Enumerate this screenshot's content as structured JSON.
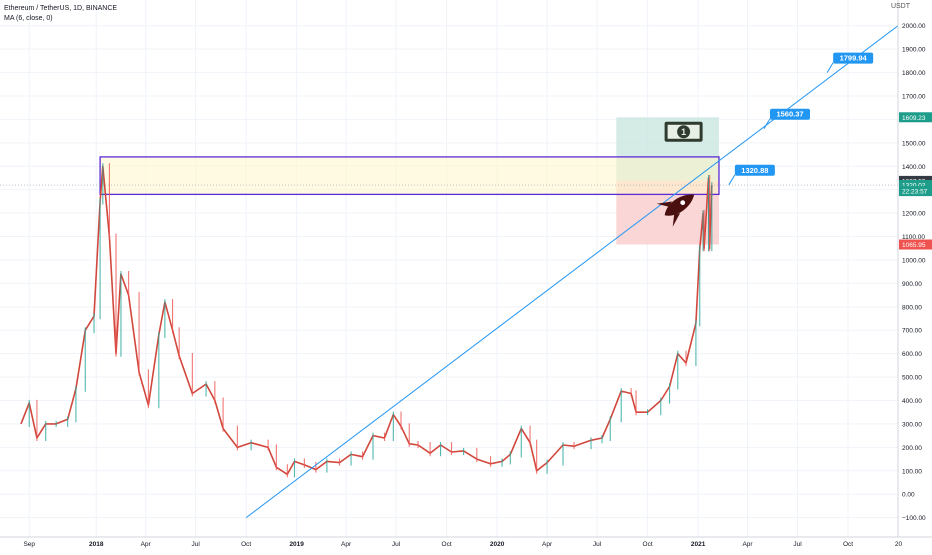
{
  "header": {
    "symbol_line": "Ethereum / TetherUS, 1D, BINANCE",
    "indicator_line": "MA (6, close, 0)",
    "currency": "USDT"
  },
  "colors": {
    "candle_up": "#26a69a",
    "candle_down": "#ef5350",
    "price_line": "#d1473c",
    "trendline": "#2196f3",
    "zone_border": "#5b2bd8",
    "zone_fill": "#fff6c8",
    "profit_fill": "#cde8e2",
    "loss_fill": "#f9cfcf",
    "badge_blue": "#2196f3",
    "badge_green": "#1e9e8a",
    "badge_red": "#ef5350",
    "grid": "#f0f3fa"
  },
  "chart_data": {
    "type": "line",
    "title": "Ethereum / TetherUS, 1D, BINANCE",
    "ylim": [
      -140,
      2080
    ],
    "xlim": [
      "2017-08-17",
      "2021-12-31"
    ],
    "y_ticks": [
      -100,
      0,
      100,
      200,
      300,
      400,
      500,
      600,
      700,
      800,
      900,
      1000,
      1100,
      1200,
      1300,
      1400,
      1500,
      1600,
      1700,
      1800,
      1900,
      2000
    ],
    "y_tick_labels": [
      "−100.00",
      "0.00",
      "100.00",
      "200.00",
      "300.00",
      "400.00",
      "500.00",
      "600.00",
      "700.00",
      "800.00",
      "900.00",
      "1000.00",
      "1100.00",
      "1200.00",
      "1300.00",
      "1400.00",
      "1500.00",
      "1600.00",
      "1700.00",
      "1800.00",
      "1900.00",
      "2000.00"
    ],
    "x_ticks": [
      {
        "label": "Sep",
        "date": "2017-09-01"
      },
      {
        "label": "2018",
        "date": "2018-01-01"
      },
      {
        "label": "Apr",
        "date": "2018-04-01"
      },
      {
        "label": "Jul",
        "date": "2018-07-01"
      },
      {
        "label": "Oct",
        "date": "2018-10-01"
      },
      {
        "label": "2019",
        "date": "2019-01-01"
      },
      {
        "label": "Apr",
        "date": "2019-04-01"
      },
      {
        "label": "Jul",
        "date": "2019-07-01"
      },
      {
        "label": "Oct",
        "date": "2019-10-01"
      },
      {
        "label": "2020",
        "date": "2020-01-01"
      },
      {
        "label": "Apr",
        "date": "2020-04-01"
      },
      {
        "label": "Jul",
        "date": "2020-07-01"
      },
      {
        "label": "Oct",
        "date": "2020-10-01"
      },
      {
        "label": "2021",
        "date": "2021-01-01"
      },
      {
        "label": "Apr",
        "date": "2021-04-01"
      },
      {
        "label": "Jul",
        "date": "2021-07-01"
      },
      {
        "label": "Oct",
        "date": "2021-10-01"
      },
      {
        "label": "20",
        "date": "2022-01-01"
      }
    ],
    "series": [
      {
        "points": [
          [
            "2017-08-17",
            300
          ],
          [
            "2017-09-01",
            390
          ],
          [
            "2017-09-15",
            240
          ],
          [
            "2017-10-01",
            300
          ],
          [
            "2017-10-20",
            300
          ],
          [
            "2017-11-10",
            320
          ],
          [
            "2017-11-25",
            450
          ],
          [
            "2017-12-12",
            700
          ],
          [
            "2017-12-28",
            760
          ],
          [
            "2018-01-08",
            1250
          ],
          [
            "2018-01-13",
            1400
          ],
          [
            "2018-01-25",
            1100
          ],
          [
            "2018-02-06",
            600
          ],
          [
            "2018-02-15",
            940
          ],
          [
            "2018-03-01",
            850
          ],
          [
            "2018-03-20",
            520
          ],
          [
            "2018-04-06",
            380
          ],
          [
            "2018-04-25",
            680
          ],
          [
            "2018-05-06",
            820
          ],
          [
            "2018-05-20",
            700
          ],
          [
            "2018-06-01",
            590
          ],
          [
            "2018-06-25",
            430
          ],
          [
            "2018-07-20",
            470
          ],
          [
            "2018-08-05",
            400
          ],
          [
            "2018-08-20",
            280
          ],
          [
            "2018-09-15",
            200
          ],
          [
            "2018-10-10",
            220
          ],
          [
            "2018-11-10",
            200
          ],
          [
            "2018-11-25",
            115
          ],
          [
            "2018-12-15",
            85
          ],
          [
            "2018-12-28",
            140
          ],
          [
            "2019-01-15",
            125
          ],
          [
            "2019-02-05",
            105
          ],
          [
            "2019-02-25",
            140
          ],
          [
            "2019-03-20",
            135
          ],
          [
            "2019-04-10",
            170
          ],
          [
            "2019-05-01",
            160
          ],
          [
            "2019-05-20",
            250
          ],
          [
            "2019-06-10",
            240
          ],
          [
            "2019-06-26",
            340
          ],
          [
            "2019-07-10",
            290
          ],
          [
            "2019-07-25",
            215
          ],
          [
            "2019-08-10",
            210
          ],
          [
            "2019-09-01",
            175
          ],
          [
            "2019-09-20",
            210
          ],
          [
            "2019-10-10",
            180
          ],
          [
            "2019-11-01",
            185
          ],
          [
            "2019-11-25",
            150
          ],
          [
            "2019-12-20",
            130
          ],
          [
            "2020-01-10",
            140
          ],
          [
            "2020-01-25",
            170
          ],
          [
            "2020-02-14",
            280
          ],
          [
            "2020-03-01",
            220
          ],
          [
            "2020-03-13",
            100
          ],
          [
            "2020-04-01",
            135
          ],
          [
            "2020-04-30",
            210
          ],
          [
            "2020-05-20",
            205
          ],
          [
            "2020-06-20",
            230
          ],
          [
            "2020-07-10",
            240
          ],
          [
            "2020-07-25",
            320
          ],
          [
            "2020-08-14",
            440
          ],
          [
            "2020-09-01",
            430
          ],
          [
            "2020-09-10",
            350
          ],
          [
            "2020-10-01",
            350
          ],
          [
            "2020-10-25",
            400
          ],
          [
            "2020-11-10",
            460
          ],
          [
            "2020-11-25",
            600
          ],
          [
            "2020-12-10",
            560
          ],
          [
            "2020-12-28",
            730
          ],
          [
            "2021-01-04",
            1050
          ],
          [
            "2021-01-10",
            1200
          ],
          [
            "2021-01-12",
            1050
          ],
          [
            "2021-01-20",
            1350
          ],
          [
            "2021-01-22",
            1050
          ],
          [
            "2021-01-26",
            1320
          ]
        ]
      }
    ],
    "annotations": {
      "resistance_zone": {
        "from": "2018-01-08",
        "to": "2021-02-08",
        "low": 1280,
        "high": 1440
      },
      "trendline": {
        "from": [
          "2018-10-01",
          -100
        ],
        "to": [
          "2021-12-31",
          2000
        ]
      },
      "position_tool": {
        "from": "2020-08-05",
        "to": "2021-02-08",
        "entry": 1337.59,
        "target": 1609.23,
        "stop": 1065.95
      },
      "callouts": [
        {
          "label": "1320.88",
          "value": 1320.88,
          "date": "2021-02-26"
        },
        {
          "label": "1560.37",
          "value": 1560.37,
          "date": "2021-05-01"
        },
        {
          "label": "1799.94",
          "value": 1799.94,
          "date": "2021-08-24"
        }
      ],
      "price_badges": [
        {
          "label": "1609.23",
          "value": 1609.23,
          "color": "green"
        },
        {
          "label": "1337.59",
          "value": 1337.59,
          "color": "dark"
        },
        {
          "label": "1320.02",
          "value": 1320.02,
          "color": "green"
        },
        {
          "label": "22:23:57",
          "value": 1294,
          "color": "green"
        },
        {
          "label": "1065.95",
          "value": 1065.95,
          "color": "red"
        }
      ]
    }
  }
}
